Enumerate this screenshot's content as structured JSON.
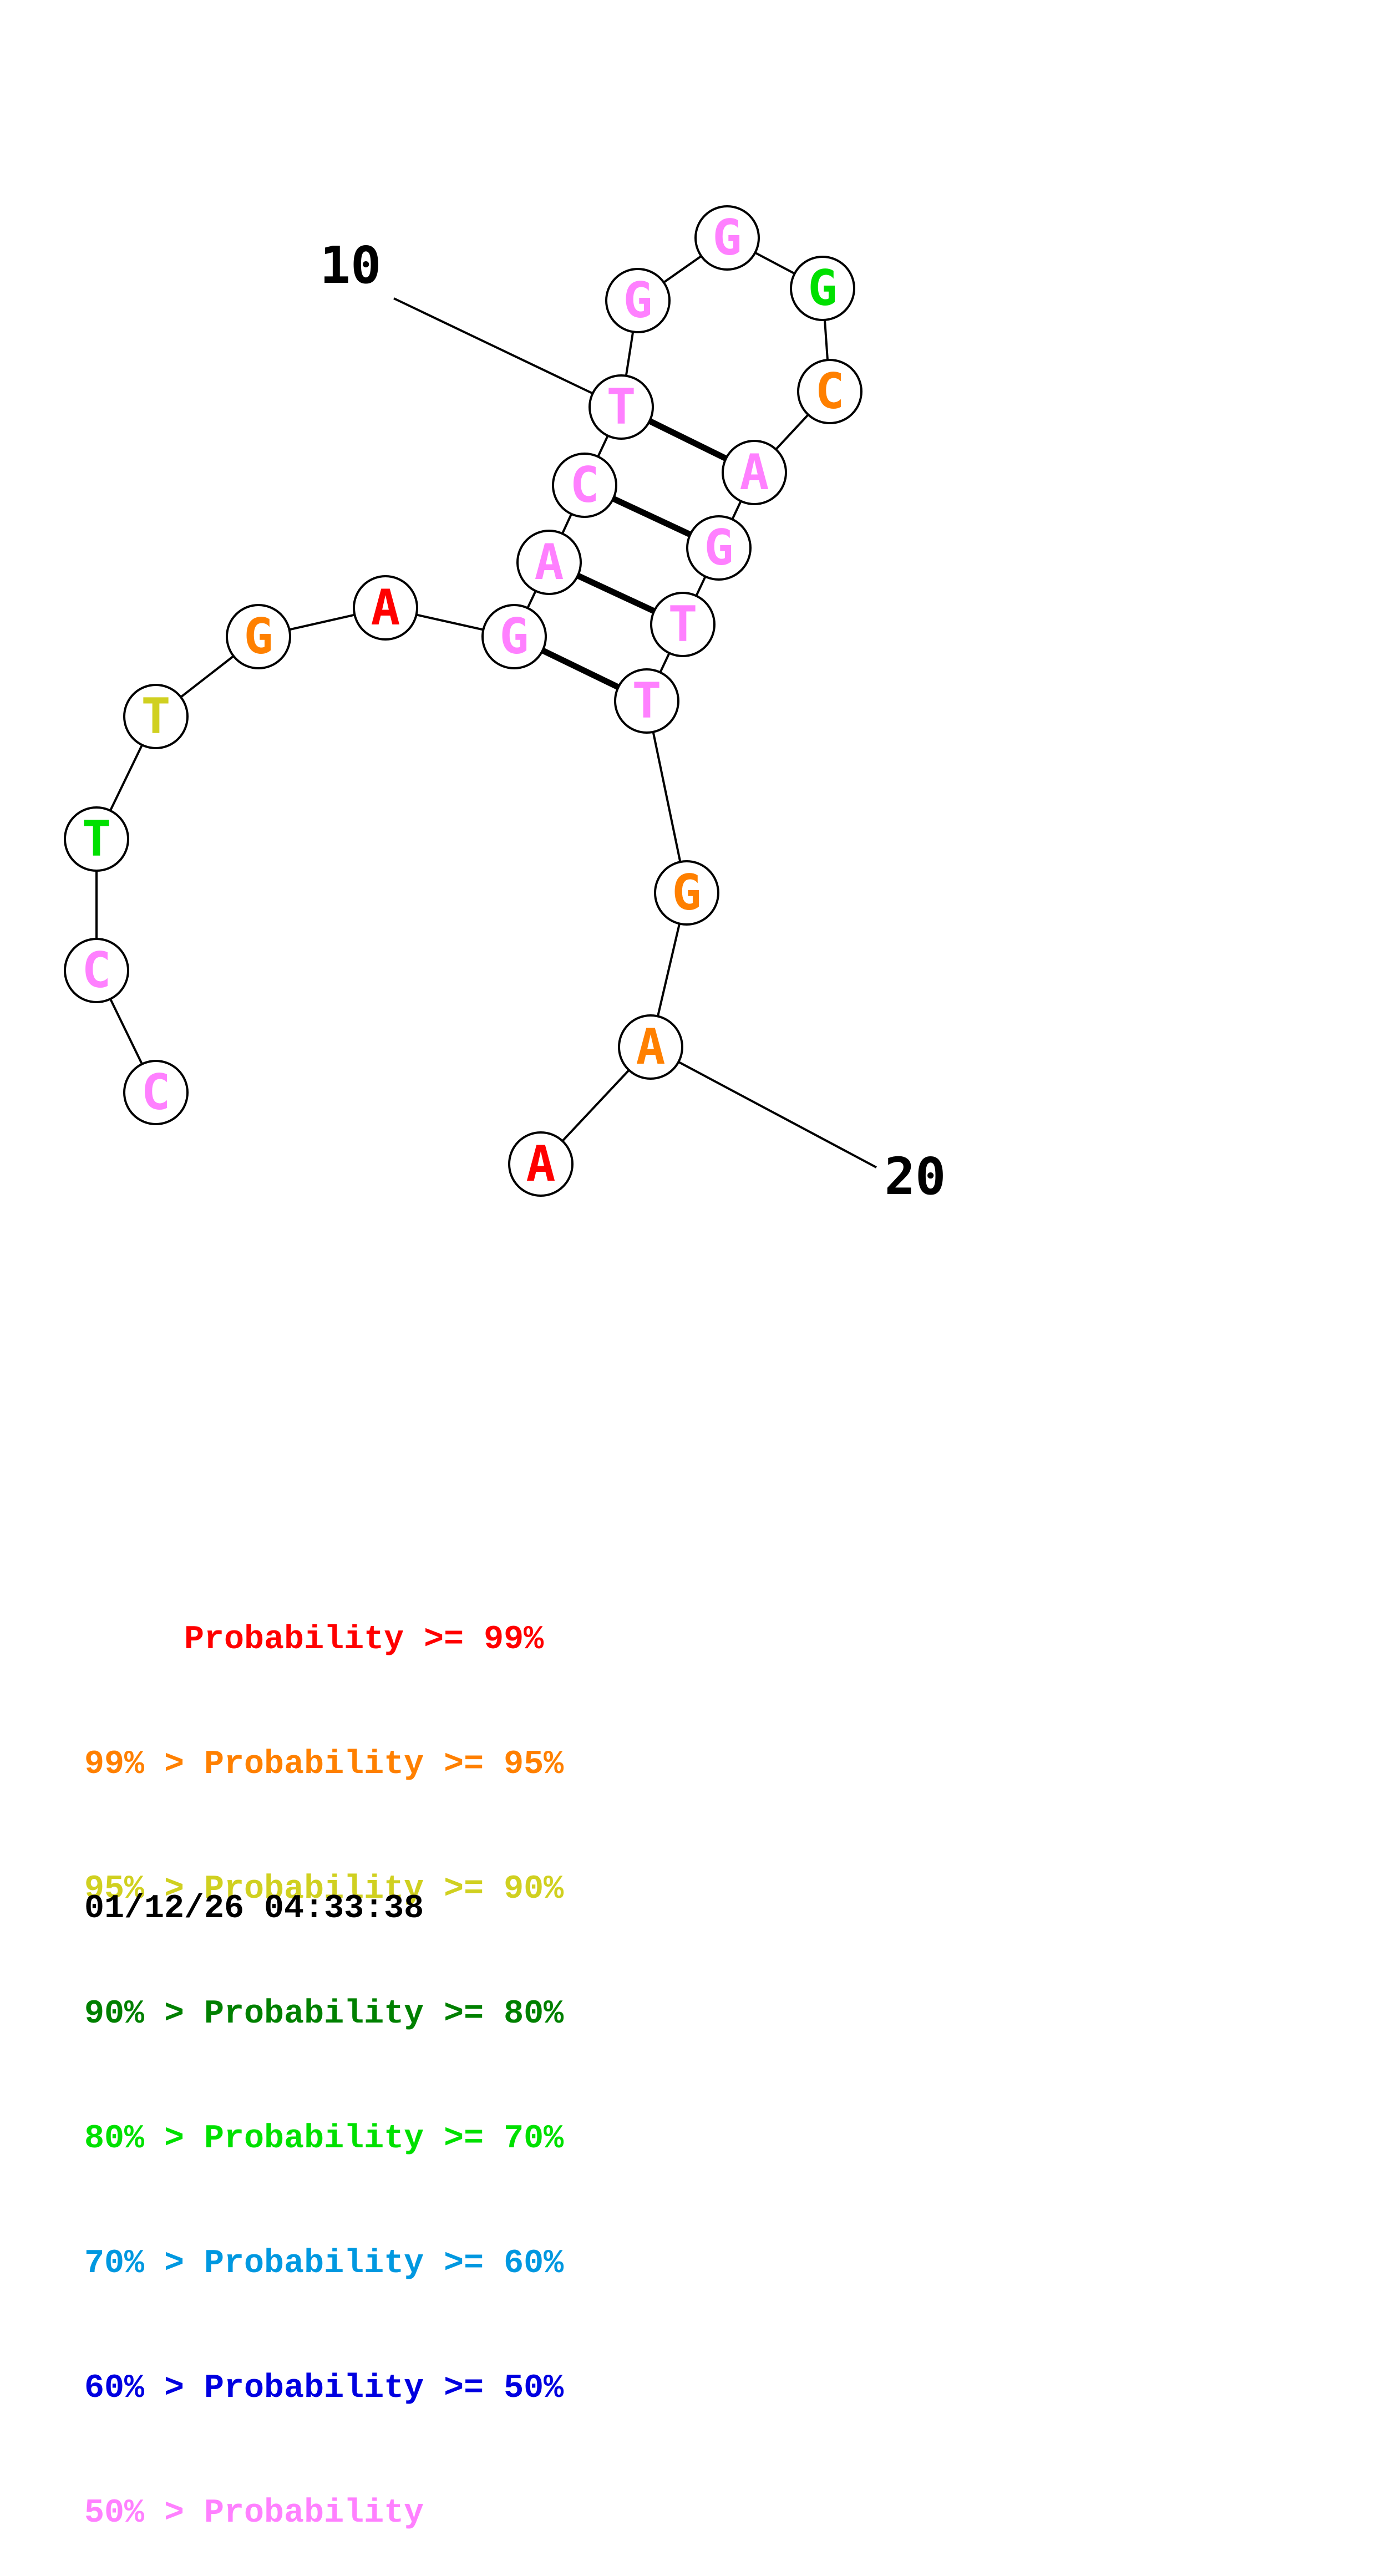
{
  "structure": {
    "nucleotides": [
      {
        "index": 1,
        "base": "C",
        "color": "#ff80ff"
      },
      {
        "index": 2,
        "base": "C",
        "color": "#ff80ff"
      },
      {
        "index": 3,
        "base": "T",
        "color": "#00e000"
      },
      {
        "index": 4,
        "base": "T",
        "color": "#d0d020"
      },
      {
        "index": 5,
        "base": "G",
        "color": "#ff8000"
      },
      {
        "index": 6,
        "base": "A",
        "color": "#ff0000"
      },
      {
        "index": 7,
        "base": "G",
        "color": "#ff80ff"
      },
      {
        "index": 8,
        "base": "A",
        "color": "#ff80ff"
      },
      {
        "index": 9,
        "base": "C",
        "color": "#ff80ff"
      },
      {
        "index": 10,
        "base": "T",
        "color": "#ff80ff"
      },
      {
        "index": 11,
        "base": "G",
        "color": "#ff80ff"
      },
      {
        "index": 12,
        "base": "G",
        "color": "#ff80ff"
      },
      {
        "index": 13,
        "base": "G",
        "color": "#00e000"
      },
      {
        "index": 14,
        "base": "C",
        "color": "#ff8000"
      },
      {
        "index": 15,
        "base": "A",
        "color": "#ff80ff"
      },
      {
        "index": 16,
        "base": "G",
        "color": "#ff80ff"
      },
      {
        "index": 17,
        "base": "T",
        "color": "#ff80ff"
      },
      {
        "index": 18,
        "base": "T",
        "color": "#ff80ff"
      },
      {
        "index": 19,
        "base": "G",
        "color": "#ff8000"
      },
      {
        "index": 20,
        "base": "A",
        "color": "#ff8000"
      },
      {
        "index": 21,
        "base": "A",
        "color": "#ff0000"
      }
    ],
    "pairs": [
      [
        7,
        18
      ],
      [
        8,
        17
      ],
      [
        9,
        16
      ],
      [
        10,
        15
      ]
    ],
    "index_labels": [
      {
        "nucleotide": 10,
        "text": "10"
      },
      {
        "nucleotide": 20,
        "text": "20"
      }
    ]
  },
  "legend": [
    {
      "text": "     Probability >= 99%",
      "color": "#ff0000"
    },
    {
      "text": "99% > Probability >= 95%",
      "color": "#ff8000"
    },
    {
      "text": "95% > Probability >= 90%",
      "color": "#d0d020"
    },
    {
      "text": "90% > Probability >= 80%",
      "color": "#008000"
    },
    {
      "text": "80% > Probability >= 70%",
      "color": "#00e000"
    },
    {
      "text": "70% > Probability >= 60%",
      "color": "#0098e0"
    },
    {
      "text": "60% > Probability >= 50%",
      "color": "#0000e0"
    },
    {
      "text": "50% > Probability",
      "color": "#ff80ff"
    }
  ],
  "timestamp": "01/12/26 04:33:38"
}
